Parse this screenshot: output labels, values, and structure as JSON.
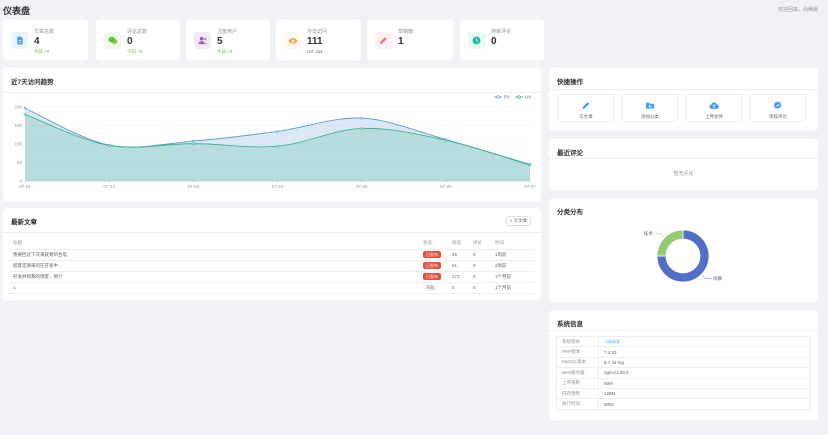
{
  "header": {
    "title": "仪表盘",
    "welcome": "欢迎回来，尚稀晨"
  },
  "stats": [
    {
      "label": "文章总数",
      "value": "4",
      "sub": "今日 +0",
      "icon": "document-icon",
      "color": "#409eff",
      "bg": "#ecf5ff"
    },
    {
      "label": "评论总数",
      "value": "0",
      "sub": "今日 +0",
      "icon": "chat-icon",
      "color": "#67c23a",
      "bg": "#f0f9eb"
    },
    {
      "label": "注册用户",
      "value": "5",
      "sub": "今日 +0",
      "icon": "users-icon",
      "color": "#9b59b6",
      "bg": "#f3e9f7"
    },
    {
      "label": "今日访问",
      "value": "111",
      "sub": "UV: 111",
      "icon": "eye-icon",
      "color": "#e6a23c",
      "bg": "#fdf6ec"
    },
    {
      "label": "草稿箱",
      "value": "1",
      "sub": "",
      "icon": "pencil-icon",
      "color": "#f56c6c",
      "bg": "#fef0f0"
    },
    {
      "label": "待审评论",
      "value": "0",
      "sub": "",
      "icon": "clock-icon",
      "color": "#1abc9c",
      "bg": "#e8f8f5"
    }
  ],
  "trend": {
    "title": "近7天访问趋势",
    "legend": [
      "PV",
      "UV"
    ],
    "colors": {
      "pv": "#5b9bd5",
      "uv": "#3cb38a"
    }
  },
  "chart_data": {
    "type": "line",
    "title": "近7天访问趋势",
    "categories": [
      "07-21",
      "07-22",
      "07-23",
      "07-24",
      "07-25",
      "07-26",
      "07-27"
    ],
    "series": [
      {
        "name": "PV",
        "values": [
          197,
          97,
          108,
          134,
          170,
          112,
          45
        ]
      },
      {
        "name": "UV",
        "values": [
          180,
          96,
          101,
          94,
          142,
          110,
          43
        ]
      }
    ],
    "ylim": [
      0,
      200
    ],
    "yticks": [
      "0",
      "50",
      "100",
      "150",
      "200"
    ],
    "grid": true,
    "legend_position": "top-right"
  },
  "quick": {
    "title": "快捷操作",
    "items": [
      {
        "label": "写文章",
        "icon": "pencil-icon"
      },
      {
        "label": "添加分类",
        "icon": "folder-plus-icon"
      },
      {
        "label": "上传文件",
        "icon": "upload-cloud-icon"
      },
      {
        "label": "审核评论",
        "icon": "comment-check-icon"
      }
    ]
  },
  "recent_comments": {
    "title": "最近评论",
    "empty": "暂无评论"
  },
  "articles": {
    "title": "最新文章",
    "write_btn": "+ 写文章",
    "headers": [
      "标题",
      "状态",
      "阅读",
      "评论",
      "时间"
    ],
    "rows": [
      {
        "title": "我要回过下次来就要新合电",
        "status": "已发布",
        "reads": "46",
        "comments": "0",
        "time": "1周前",
        "published": true
      },
      {
        "title": "搭客定期来的在开发中...",
        "status": "已发布",
        "reads": "61",
        "comments": "0",
        "time": "2周前",
        "published": true
      },
      {
        "title": "开发并和我的博客，简介",
        "status": "已发布",
        "reads": "171",
        "comments": "0",
        "time": "1个月前",
        "published": true
      },
      {
        "title": "1",
        "status": "草稿",
        "reads": "0",
        "comments": "0",
        "time": "1个月前",
        "published": false
      }
    ]
  },
  "category": {
    "title": "分类分布",
    "slices": [
      {
        "name": "闲聊",
        "value": 3,
        "color": "#5470c6"
      },
      {
        "name": "技术",
        "value": 1,
        "color": "#91cc75"
      }
    ]
  },
  "system": {
    "title": "系统信息",
    "rows": [
      {
        "key": "系统版本",
        "value": "v3.0.0",
        "badge": true
      },
      {
        "key": "PHP版本",
        "value": "7.4.33"
      },
      {
        "key": "MySQL版本",
        "value": "5.7.44-log"
      },
      {
        "key": "Web服务器",
        "value": "nginx/1.28.0"
      },
      {
        "key": "上传限制",
        "value": "50M"
      },
      {
        "key": "内存限制",
        "value": "128M"
      },
      {
        "key": "执行时间",
        "value": "300s"
      }
    ]
  }
}
